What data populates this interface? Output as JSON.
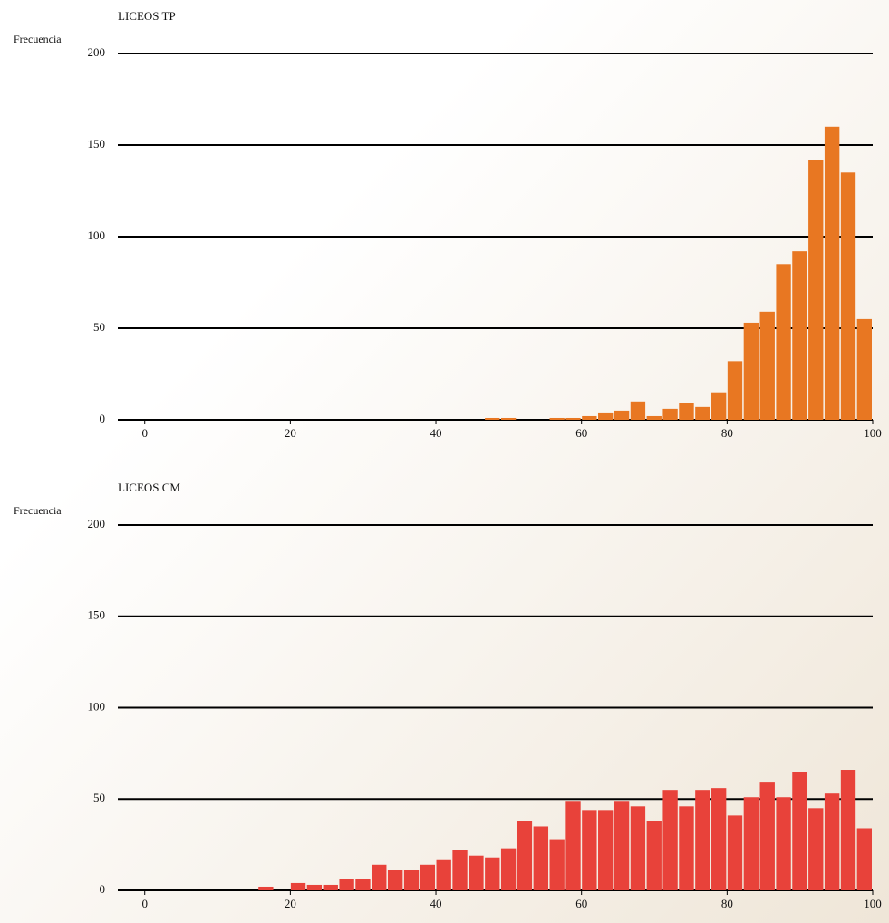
{
  "chart_data": [
    {
      "type": "histogram",
      "title": "LICEOS TP",
      "y_label": "Frecuencia",
      "color": "#e87722",
      "bins": [
        0,
        2.22,
        4.44,
        6.67,
        8.89,
        11.11,
        13.33,
        15.56,
        17.78,
        20,
        22.22,
        24.44,
        26.67,
        28.89,
        31.11,
        33.33,
        35.56,
        37.78,
        40,
        42.22,
        44.44,
        46.67,
        48.89,
        51.11,
        53.33,
        55.56,
        57.78,
        60,
        62.22,
        64.44,
        66.67,
        68.89,
        71.11,
        73.33,
        75.56,
        77.78,
        80,
        82.22,
        84.44,
        86.67,
        88.89,
        91.11,
        93.33,
        95.56,
        97.78,
        100
      ],
      "values": [
        0,
        0,
        0,
        0,
        0,
        0,
        0,
        0,
        0,
        0,
        0,
        0,
        0,
        0,
        0,
        0,
        0,
        0,
        0,
        0,
        0,
        1,
        1,
        0,
        0,
        1,
        1,
        2,
        4,
        5,
        10,
        2,
        6,
        9,
        7,
        15,
        32,
        53,
        59,
        85,
        92,
        142,
        160,
        135,
        55
      ],
      "xlim": [
        -3.7,
        100
      ],
      "ylim": [
        0,
        200
      ],
      "xticks": [
        0,
        20,
        40,
        60,
        80,
        100
      ],
      "yticks": [
        0,
        50,
        100,
        150,
        200
      ],
      "grid": true
    },
    {
      "type": "histogram",
      "title": "LICEOS CM",
      "y_label": "Frecuencia",
      "color": "#e8423a",
      "bins": [
        0,
        2.22,
        4.44,
        6.67,
        8.89,
        11.11,
        13.33,
        15.56,
        17.78,
        20,
        22.22,
        24.44,
        26.67,
        28.89,
        31.11,
        33.33,
        35.56,
        37.78,
        40,
        42.22,
        44.44,
        46.67,
        48.89,
        51.11,
        53.33,
        55.56,
        57.78,
        60,
        62.22,
        64.44,
        66.67,
        68.89,
        71.11,
        73.33,
        75.56,
        77.78,
        80,
        82.22,
        84.44,
        86.67,
        88.89,
        91.11,
        93.33,
        95.56,
        97.78,
        100
      ],
      "values": [
        0,
        0,
        0,
        0,
        0,
        0,
        0,
        2,
        0,
        4,
        3,
        3,
        6,
        6,
        14,
        11,
        11,
        14,
        17,
        22,
        19,
        18,
        23,
        38,
        35,
        28,
        49,
        44,
        44,
        49,
        46,
        38,
        55,
        46,
        55,
        56,
        41,
        51,
        59,
        51,
        65,
        45,
        53,
        66,
        34
      ],
      "xlim": [
        -3.7,
        100
      ],
      "ylim": [
        0,
        200
      ],
      "xticks": [
        0,
        20,
        40,
        60,
        80,
        100
      ],
      "yticks": [
        0,
        50,
        100,
        150,
        200
      ],
      "grid": true
    }
  ]
}
